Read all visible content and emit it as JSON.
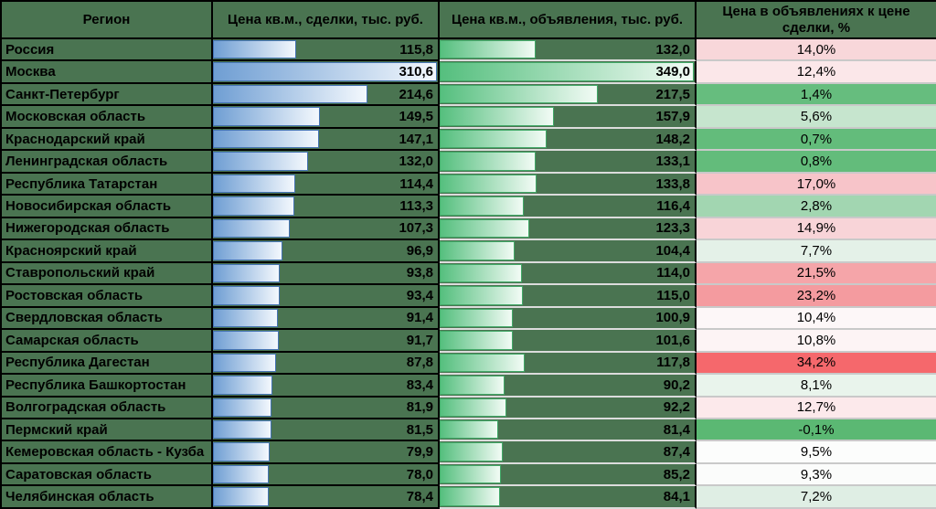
{
  "colors": {
    "table_background": "#4a7451",
    "grid_dark": "#000000",
    "grid_light": "#dcdcdc",
    "deal_bar_border": "#4573b4",
    "deal_bar_gradient_start": "#6f9ed3",
    "deal_bar_gradient_end": "#f3f8fd",
    "listing_bar_border": "#42a968",
    "listing_bar_gradient_start": "#55bf7e",
    "listing_bar_gradient_end": "#f2fbf5",
    "scale_min_green": "#63be7b",
    "scale_mid_white": "#ffffff",
    "scale_max_red": "#f8696b"
  },
  "table": {
    "columns": [
      {
        "label": "Регион"
      },
      {
        "label": "Цена кв.м., сделки, тыс. руб."
      },
      {
        "label": "Цена кв.м., объявления, тыс. руб."
      },
      {
        "label": "Цена в объявлениях к цене сделки, %"
      }
    ],
    "deal_bar_max": 310.6,
    "listing_bar_max": 349.0,
    "rows": [
      {
        "region": "Россия",
        "deal": "115,8",
        "deal_v": 115.8,
        "listing": "132,0",
        "listing_v": 132.0,
        "premium": "14,0%",
        "premium_color": "#f8d7da"
      },
      {
        "region": "Москва",
        "deal": "310,6",
        "deal_v": 310.6,
        "listing": "349,0",
        "listing_v": 349.0,
        "premium": "12,4%",
        "premium_color": "#fbe7e9"
      },
      {
        "region": "Санкт-Петербург",
        "deal": "214,6",
        "deal_v": 214.6,
        "listing": "217,5",
        "listing_v": 217.5,
        "premium": "1,4%",
        "premium_color": "#66bd7e"
      },
      {
        "region": "Московская область",
        "deal": "149,5",
        "deal_v": 149.5,
        "listing": "157,9",
        "listing_v": 157.9,
        "premium": "5,6%",
        "premium_color": "#c6e5ce"
      },
      {
        "region": "Краснодарский край",
        "deal": "147,1",
        "deal_v": 147.1,
        "listing": "148,2",
        "listing_v": 148.2,
        "premium": "0,7%",
        "premium_color": "#63bc7b"
      },
      {
        "region": "Ленинградская область",
        "deal": "132,0",
        "deal_v": 132.0,
        "listing": "133,1",
        "listing_v": 133.1,
        "premium": "0,8%",
        "premium_color": "#63bc7b"
      },
      {
        "region": "Республика Татарстан",
        "deal": "114,4",
        "deal_v": 114.4,
        "listing": "133,8",
        "listing_v": 133.8,
        "premium": "17,0%",
        "premium_color": "#f7c4c9"
      },
      {
        "region": "Новосибирская область",
        "deal": "113,3",
        "deal_v": 113.3,
        "listing": "116,4",
        "listing_v": 116.4,
        "premium": "2,8%",
        "premium_color": "#a2d6b1"
      },
      {
        "region": "Нижегородская область",
        "deal": "107,3",
        "deal_v": 107.3,
        "listing": "123,3",
        "listing_v": 123.3,
        "premium": "14,9%",
        "premium_color": "#f8d4d8"
      },
      {
        "region": "Красноярский край",
        "deal": "96,9",
        "deal_v": 96.9,
        "listing": "104,4",
        "listing_v": 104.4,
        "premium": "7,7%",
        "premium_color": "#e4f1e8"
      },
      {
        "region": "Ставропольский край",
        "deal": "93,8",
        "deal_v": 93.8,
        "listing": "114,0",
        "listing_v": 114.0,
        "premium": "21,5%",
        "premium_color": "#f5a5a9"
      },
      {
        "region": "Ростовская область",
        "deal": "93,4",
        "deal_v": 93.4,
        "listing": "115,0",
        "listing_v": 115.0,
        "premium": "23,2%",
        "premium_color": "#f49b9f"
      },
      {
        "region": "Свердловская область",
        "deal": "91,4",
        "deal_v": 91.4,
        "listing": "100,9",
        "listing_v": 100.9,
        "premium": "10,4%",
        "premium_color": "#fdf7f8"
      },
      {
        "region": "Самарская область",
        "deal": "91,7",
        "deal_v": 91.7,
        "listing": "101,6",
        "listing_v": 101.6,
        "premium": "10,8%",
        "premium_color": "#fdf4f5"
      },
      {
        "region": "Республика Дагестан",
        "deal": "87,8",
        "deal_v": 87.8,
        "listing": "117,8",
        "listing_v": 117.8,
        "premium": "34,2%",
        "premium_color": "#f5686c"
      },
      {
        "region": "Республика Башкортостан",
        "deal": "83,4",
        "deal_v": 83.4,
        "listing": "90,2",
        "listing_v": 90.2,
        "premium": "8,1%",
        "premium_color": "#e9f4ec"
      },
      {
        "region": "Волгоградская область",
        "deal": "81,9",
        "deal_v": 81.9,
        "listing": "92,2",
        "listing_v": 92.2,
        "premium": "12,7%",
        "premium_color": "#fce9eb"
      },
      {
        "region": "Пермский край",
        "deal": "81,5",
        "deal_v": 81.5,
        "listing": "81,4",
        "listing_v": 81.4,
        "premium": "-0,1%",
        "premium_color": "#5bb873"
      },
      {
        "region": "Кемеровская область - Кузба",
        "deal": "79,9",
        "deal_v": 79.9,
        "listing": "87,4",
        "listing_v": 87.4,
        "premium": "9,5%",
        "premium_color": "#fcfdfc"
      },
      {
        "region": "Саратовская область",
        "deal": "78,0",
        "deal_v": 78.0,
        "listing": "85,2",
        "listing_v": 85.2,
        "premium": "9,3%",
        "premium_color": "#fbfcfb"
      },
      {
        "region": "Челябинская область",
        "deal": "78,4",
        "deal_v": 78.4,
        "listing": "84,1",
        "listing_v": 84.1,
        "premium": "7,2%",
        "premium_color": "#dfeee4"
      }
    ]
  },
  "chart_data": {
    "type": "table",
    "title": "",
    "categories": [
      "Россия",
      "Москва",
      "Санкт-Петербург",
      "Московская область",
      "Краснодарский край",
      "Ленинградская область",
      "Республика Татарстан",
      "Новосибирская область",
      "Нижегородская область",
      "Красноярский край",
      "Ставропольский край",
      "Ростовская область",
      "Свердловская область",
      "Самарская область",
      "Республика Дагестан",
      "Республика Башкортостан",
      "Волгоградская область",
      "Пермский край",
      "Кемеровская область - Кузба",
      "Саратовская область",
      "Челябинская область"
    ],
    "series": [
      {
        "name": "Цена кв.м., сделки, тыс. руб.",
        "values": [
          115.8,
          310.6,
          214.6,
          149.5,
          147.1,
          132.0,
          114.4,
          113.3,
          107.3,
          96.9,
          93.8,
          93.4,
          91.4,
          91.7,
          87.8,
          83.4,
          81.9,
          81.5,
          79.9,
          78.0,
          78.4
        ]
      },
      {
        "name": "Цена кв.м., объявления, тыс. руб.",
        "values": [
          132.0,
          349.0,
          217.5,
          157.9,
          148.2,
          133.1,
          133.8,
          116.4,
          123.3,
          104.4,
          114.0,
          115.0,
          100.9,
          101.6,
          117.8,
          90.2,
          92.2,
          81.4,
          87.4,
          85.2,
          84.1
        ]
      },
      {
        "name": "Цена в объявлениях к цене сделки, %",
        "values": [
          14.0,
          12.4,
          1.4,
          5.6,
          0.7,
          0.8,
          17.0,
          2.8,
          14.9,
          7.7,
          21.5,
          23.2,
          10.4,
          10.8,
          34.2,
          8.1,
          12.7,
          -0.1,
          9.5,
          9.3,
          7.2
        ]
      }
    ],
    "layout_hints": {
      "bar_scale_deal_max": 310.6,
      "bar_scale_listing_max": 349.0,
      "percent_color_scale": "green(min) -> white(mid ~9.4%) -> red(max 34.2%)"
    }
  }
}
